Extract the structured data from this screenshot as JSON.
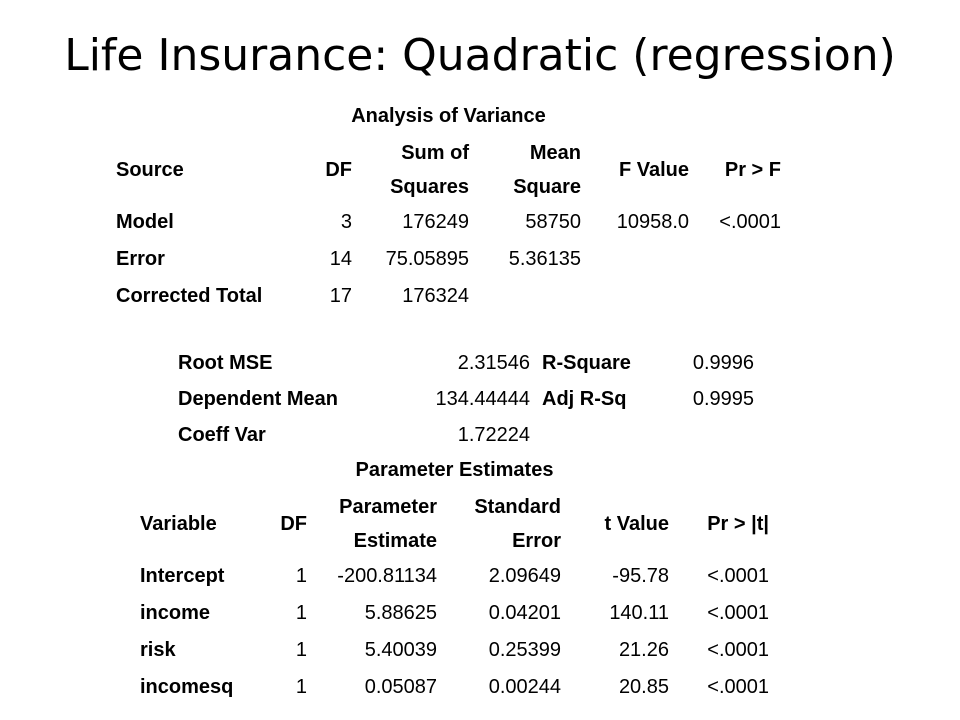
{
  "slide": {
    "title": "Life Insurance: Quadratic (regression)"
  },
  "anova": {
    "caption": "Analysis of Variance",
    "headers": {
      "source": "Source",
      "df": "DF",
      "ss_line1": "Sum of",
      "ss_line2": "Squares",
      "ms_line1": "Mean",
      "ms_line2": "Square",
      "f": "F Value",
      "p": "Pr > F"
    },
    "rows": [
      {
        "source": "Model",
        "df": "3",
        "ss": "176249",
        "ms": "58750",
        "f": "10958.0",
        "p": "<.0001"
      },
      {
        "source": "Error",
        "df": "14",
        "ss": "75.05895",
        "ms": "5.36135",
        "f": "",
        "p": ""
      },
      {
        "source": "Corrected Total",
        "df": "17",
        "ss": "176324",
        "ms": "",
        "f": "",
        "p": ""
      }
    ]
  },
  "fit": {
    "rows": [
      {
        "l1": "Root MSE",
        "v1": "2.31546",
        "l2": "R-Square",
        "v2": "0.9996"
      },
      {
        "l1": "Dependent Mean",
        "v1": "134.44444",
        "l2": "Adj R-Sq",
        "v2": "0.9995"
      },
      {
        "l1": "Coeff Var",
        "v1": "1.72224",
        "l2": "",
        "v2": ""
      }
    ]
  },
  "params": {
    "caption": "Parameter Estimates",
    "headers": {
      "variable": "Variable",
      "df": "DF",
      "est_line1": "Parameter",
      "est_line2": "Estimate",
      "se_line1": "Standard",
      "se_line2": "Error",
      "t": "t Value",
      "p": "Pr > |t|"
    },
    "rows": [
      {
        "variable": "Intercept",
        "df": "1",
        "est": "-200.81134",
        "se": "2.09649",
        "t": "-95.78",
        "p": "<.0001"
      },
      {
        "variable": "income",
        "df": "1",
        "est": "5.88625",
        "se": "0.04201",
        "t": "140.11",
        "p": "<.0001"
      },
      {
        "variable": "risk",
        "df": "1",
        "est": "5.40039",
        "se": "0.25399",
        "t": "21.26",
        "p": "<.0001"
      },
      {
        "variable": "incomesq",
        "df": "1",
        "est": "0.05087",
        "se": "0.00244",
        "t": "20.85",
        "p": "<.0001"
      }
    ]
  }
}
